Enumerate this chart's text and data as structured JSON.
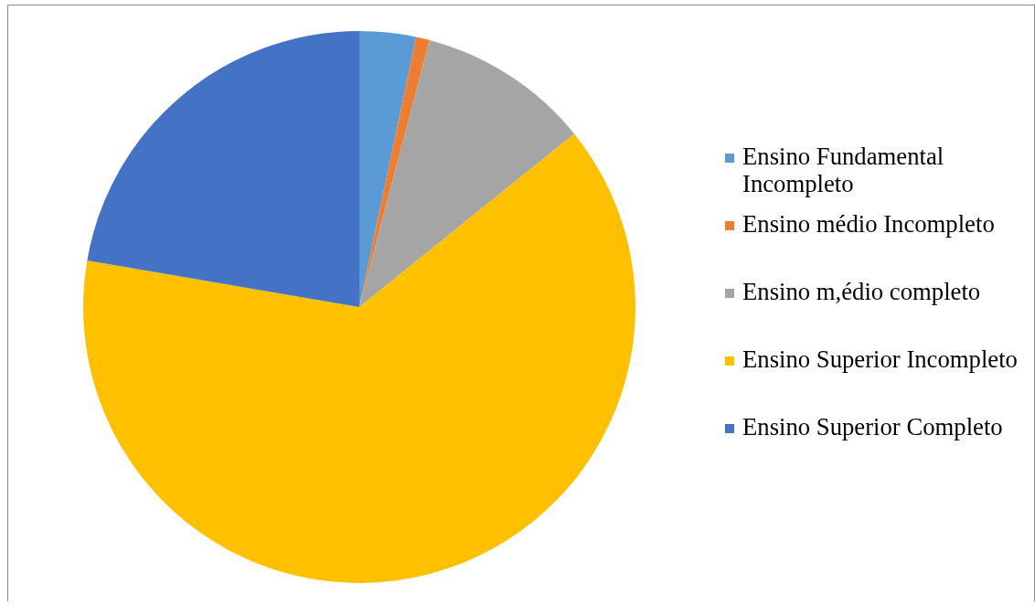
{
  "chart_data": {
    "type": "pie",
    "categories": [
      "Ensino Fundamental Incompleto",
      "Ensino médio Incompleto",
      "Ensino m,édio completo",
      "Ensino Superior Incompleto",
      "Ensino Superior Completo"
    ],
    "values": [
      3.3,
      0.8,
      10.1,
      63.5,
      22.3
    ],
    "colors": [
      "#5b9bd5",
      "#ed7d31",
      "#a5a5a5",
      "#ffc000",
      "#4472c4"
    ],
    "legend": "right"
  }
}
